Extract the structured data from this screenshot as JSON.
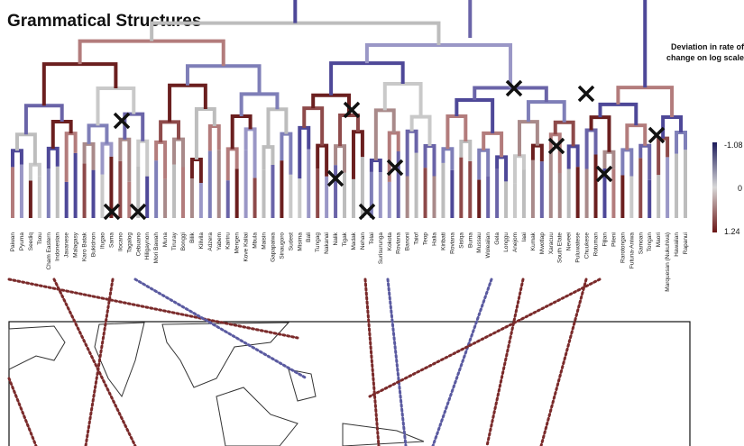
{
  "header": {
    "title": "Grammatical Structures"
  },
  "legend": {
    "title_lines": [
      "Deviation in rate of",
      "change on log scale"
    ],
    "ticks": [
      "-1.08",
      "0",
      "1.24"
    ]
  },
  "languages": [
    "Paiwan",
    "Pyuma",
    "Seediq",
    "Tsou",
    "Cham Eastern",
    "Indonesian",
    "Javanese",
    "Malagasy",
    "Karo Batak",
    "Bukidnon",
    "Ifugao",
    "Sama",
    "Ilocano",
    "Tagalog",
    "Cebuano",
    "Hiligaynon",
    "Mori Bawah",
    "Muna",
    "Tiruray",
    "Bonggi",
    "Bilik",
    "Kilivila",
    "Adzera",
    "Yabem",
    "Kairiru",
    "Mengen",
    "Kove Kaliai",
    "Mbula",
    "Maisin",
    "Gapapaiwa",
    "Sinaugoro",
    "Sudest",
    "Misima",
    "Bali",
    "Tungag",
    "Nakanai",
    "Nalik",
    "Tigak",
    "Madak",
    "Nehan",
    "Tolai",
    "Surisurunga",
    "Kokota",
    "Roviana",
    "Banoni",
    "Taiof",
    "Teop",
    "Halia",
    "Kiribati",
    "Roviana",
    "Sisiqa",
    "Buma",
    "Mussau",
    "Woleaiian",
    "Gela",
    "Longgu",
    "Anejom",
    "Iaai",
    "Kumak",
    "Mwotlap",
    "Xaracuu",
    "South Efate",
    "Neveei",
    "Puluwatese",
    "Chuukese",
    "Rotuman",
    "Fijian",
    "Pileni",
    "Rarotongan",
    "Futuna-Aniwa",
    "Samoan",
    "Tongan",
    "Maori",
    "Marquesan (Nukuhiva)",
    "Hawaiian",
    "Rapanui"
  ]
}
